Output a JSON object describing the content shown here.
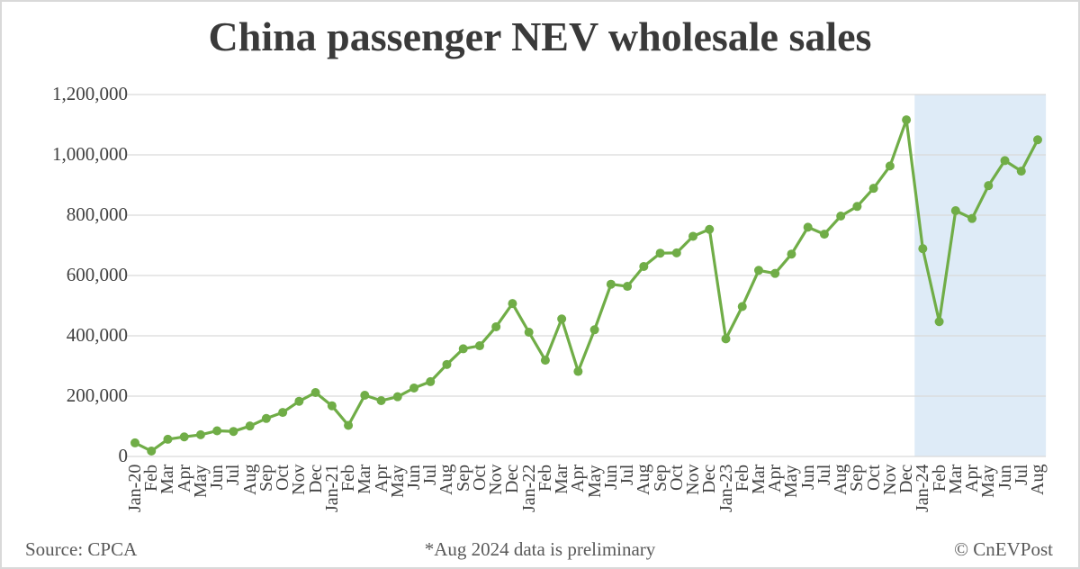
{
  "title": "China passenger NEV wholesale sales",
  "footer": {
    "source": "Source: CPCA",
    "note": "*Aug 2024 data is preliminary",
    "credit": "© CnEVPost"
  },
  "colors": {
    "line": "#70ad47",
    "marker": "#70ad47",
    "highlight": "#deebf7",
    "grid": "#d9d9d9",
    "text": "#404040"
  },
  "y_axis": {
    "ticks": [
      "0",
      "200,000",
      "400,000",
      "600,000",
      "800,000",
      "1,000,000",
      "1,200,000"
    ]
  },
  "chart_data": {
    "type": "line",
    "title": "China passenger NEV wholesale sales",
    "xlabel": "",
    "ylabel": "",
    "ylim": [
      0,
      1200000
    ],
    "grid": true,
    "legend": "none",
    "highlight_range": [
      "Jan-24",
      "Aug"
    ],
    "annotations": [
      "*Aug 2024 data is preliminary"
    ],
    "categories": [
      "Jan-20",
      "Feb",
      "Mar",
      "Apr",
      "May",
      "Jun",
      "Jul",
      "Aug",
      "Sep",
      "Oct",
      "Nov",
      "Dec",
      "Jan-21",
      "Feb",
      "Mar",
      "Apr",
      "May",
      "Jun",
      "Jul",
      "Aug",
      "Sep",
      "Oct",
      "Nov",
      "Dec",
      "Jan-22",
      "Feb",
      "Mar",
      "Apr",
      "May",
      "Jun",
      "Jul",
      "Aug",
      "Sep",
      "Oct",
      "Nov",
      "Dec",
      "Jan-23",
      "Feb",
      "Mar",
      "Apr",
      "May",
      "Jun",
      "Jul",
      "Aug",
      "Sep",
      "Oct",
      "Nov",
      "Dec",
      "Jan-24",
      "Feb",
      "Mar",
      "Apr",
      "May",
      "Jun",
      "Jul",
      "Aug"
    ],
    "series": [
      {
        "name": "NEV wholesale sales",
        "values": [
          45000,
          18000,
          57000,
          65000,
          72000,
          85000,
          83000,
          101000,
          126000,
          146000,
          183000,
          212000,
          168000,
          103000,
          203000,
          185000,
          198000,
          227000,
          248000,
          305000,
          357000,
          367000,
          430000,
          507000,
          412000,
          319000,
          456000,
          282000,
          420000,
          571000,
          564000,
          630000,
          674000,
          675000,
          730000,
          753000,
          390000,
          497000,
          617000,
          607000,
          671000,
          760000,
          737000,
          797000,
          829000,
          889000,
          963000,
          1116000,
          689000,
          447000,
          815000,
          789000,
          898000,
          981000,
          946000,
          1050000
        ]
      }
    ]
  }
}
